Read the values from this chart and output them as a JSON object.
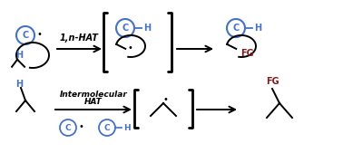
{
  "bg_color": "#ffffff",
  "blue": "#4472C4",
  "dark_red": "#7B2020",
  "black": "#000000",
  "figsize": [
    3.78,
    1.69
  ],
  "dpi": 100,
  "arrow1_label": "1,n-HAT",
  "arrow2_label_line1": "Intermolecular",
  "arrow2_label_line2": "HAT"
}
